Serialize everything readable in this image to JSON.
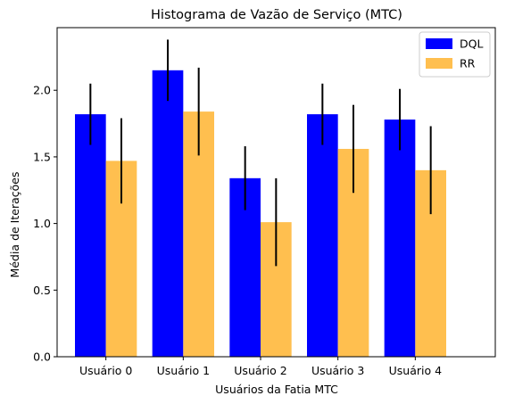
{
  "chart_data": {
    "type": "bar",
    "title": "Histograma de Vazão de Serviço (MTC)",
    "xlabel": "Usuários da Fatia MTC",
    "ylabel": "Média de Iterações",
    "categories": [
      "Usuário 0",
      "Usuário 1",
      "Usuário 2",
      "Usuário 3",
      "Usuário 4"
    ],
    "series": [
      {
        "name": "DQL",
        "color": "#0000ff",
        "values": [
          1.82,
          2.15,
          1.34,
          1.82,
          1.78
        ],
        "errors": [
          0.23,
          0.23,
          0.24,
          0.23,
          0.23
        ]
      },
      {
        "name": "RR",
        "color": "#ffbf4f",
        "values": [
          1.47,
          1.84,
          1.01,
          1.56,
          1.4
        ],
        "errors": [
          0.32,
          0.33,
          0.33,
          0.33,
          0.33
        ]
      }
    ],
    "ylim": [
      0,
      2.47
    ],
    "yticks": [
      0.0,
      0.5,
      1.0,
      1.5,
      2.0
    ],
    "ytick_labels": [
      "0.0",
      "0.5",
      "1.0",
      "1.5",
      "2.0"
    ],
    "grid": false,
    "legend_position": "top-right"
  }
}
